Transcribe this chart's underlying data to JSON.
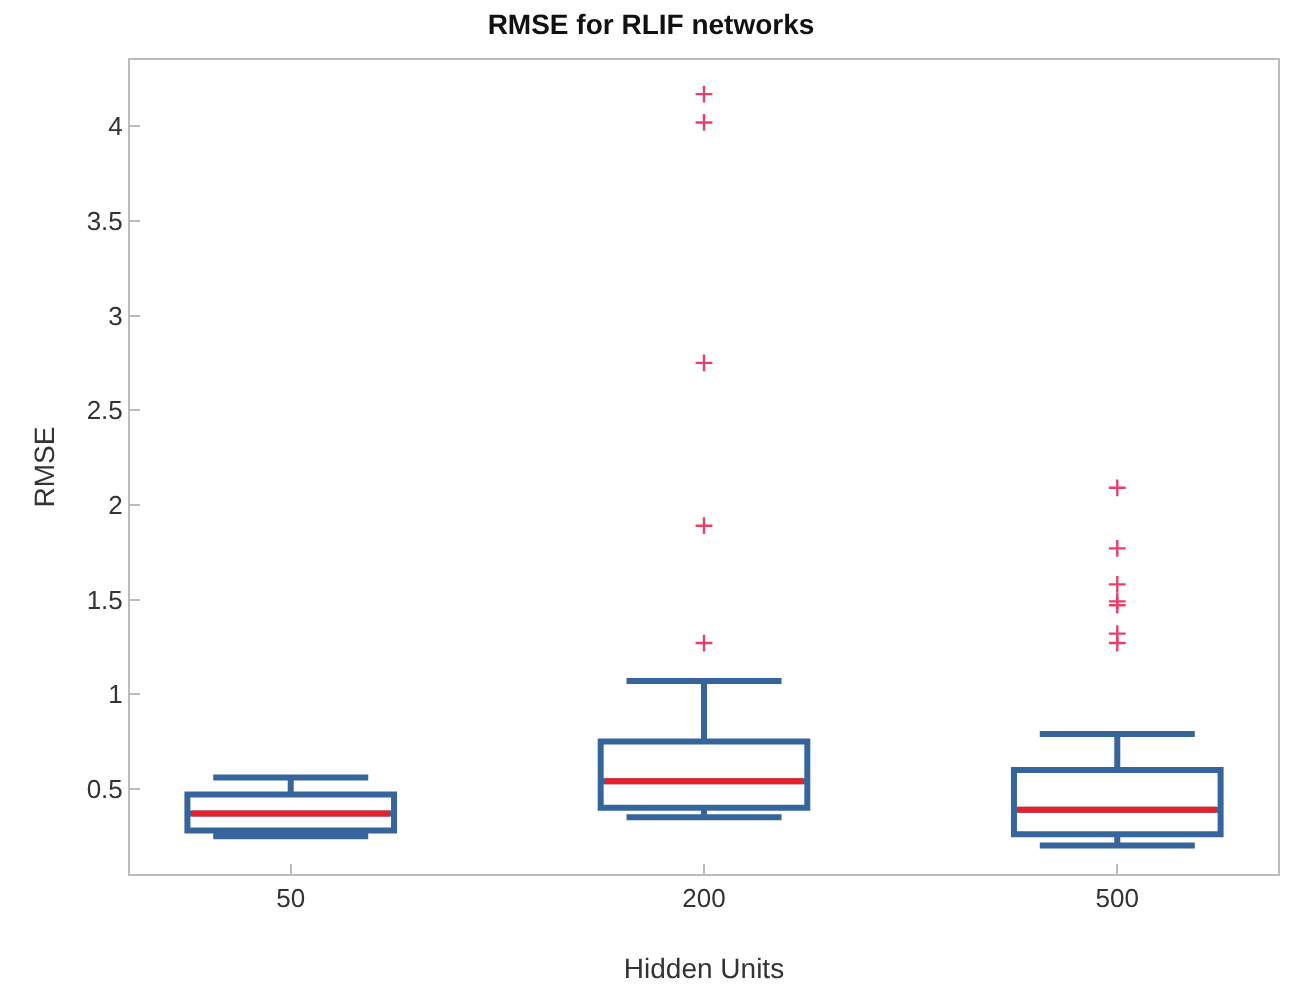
{
  "chart_data": {
    "type": "box",
    "title": "RMSE for RLIF networks",
    "xlabel": "Hidden Units",
    "ylabel": "RMSE",
    "categories": [
      "50",
      "200",
      "500"
    ],
    "series": [
      {
        "color": "#35659a",
        "boxes": [
          {
            "low": 0.25,
            "q1": 0.28,
            "median": 0.37,
            "q3": 0.47,
            "high": 0.56
          },
          {
            "low": 0.35,
            "q1": 0.4,
            "median": 0.54,
            "q3": 0.75,
            "high": 1.07,
            "outliers": [
              1.27,
              1.89,
              2.75,
              4.02,
              4.17
            ]
          },
          {
            "low": 0.2,
            "q1": 0.26,
            "median": 0.39,
            "q3": 0.6,
            "high": 0.79,
            "outliers": [
              1.27,
              1.32,
              1.47,
              1.49,
              1.58,
              1.77,
              2.09
            ]
          }
        ]
      }
    ],
    "ylim": [
      0.05,
      4.35
    ],
    "yticks": [
      0.5,
      1,
      1.5,
      2,
      2.5,
      3,
      3.5,
      4
    ]
  }
}
